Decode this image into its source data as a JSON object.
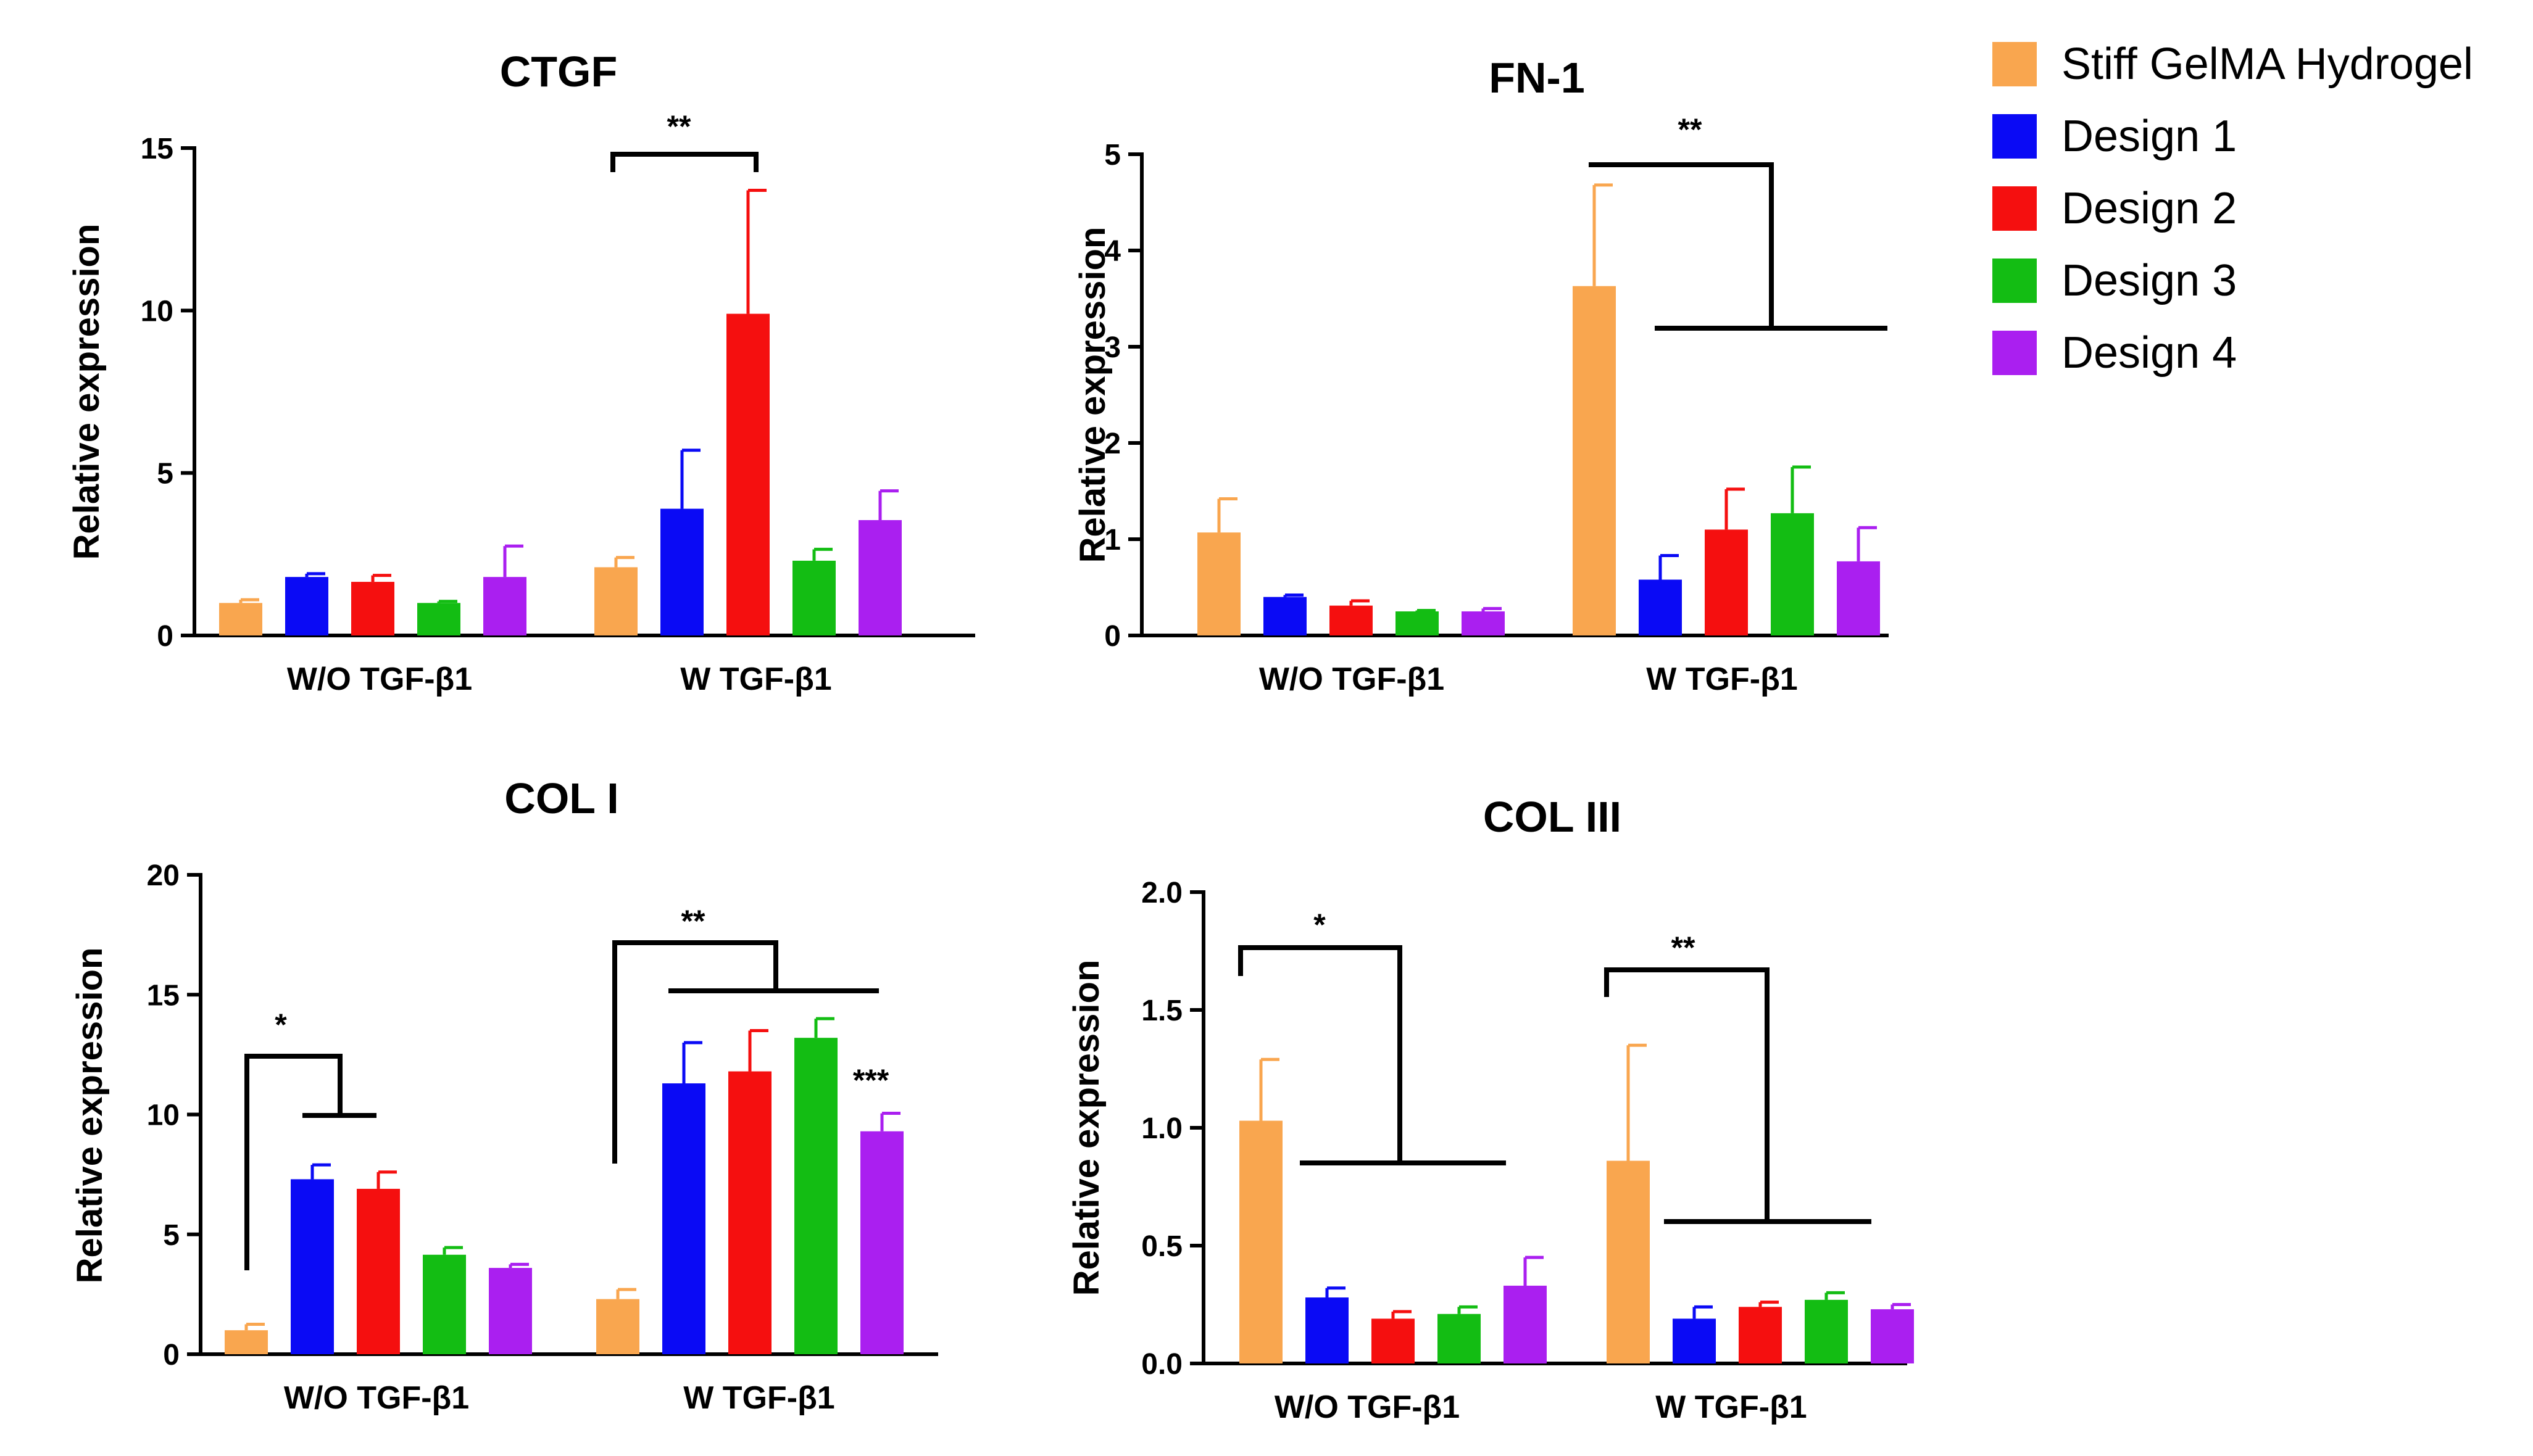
{
  "chart_data": [
    {
      "type": "bar",
      "title": "CTGF",
      "ylabel": "Relative expression",
      "ylim": [
        0,
        15
      ],
      "yticks": [
        "0",
        "5",
        "10",
        "15"
      ],
      "groups": [
        "W/O TGF-β1",
        "W TGF-β1"
      ],
      "series": [
        {
          "name": "Stiff GelMA Hydrogel",
          "values": [
            1.0,
            2.1
          ],
          "errors": [
            0.1,
            0.3
          ]
        },
        {
          "name": "Design 1",
          "values": [
            1.8,
            3.9
          ],
          "errors": [
            0.1,
            1.8
          ]
        },
        {
          "name": "Design 2",
          "values": [
            1.65,
            9.9
          ],
          "errors": [
            0.2,
            3.8
          ]
        },
        {
          "name": "Design 3",
          "values": [
            1.0,
            2.3
          ],
          "errors": [
            0.05,
            0.35
          ]
        },
        {
          "name": "Design 4",
          "values": [
            1.8,
            3.55
          ],
          "errors": [
            0.95,
            0.9
          ]
        }
      ],
      "annotations": [
        "**"
      ]
    },
    {
      "type": "bar",
      "title": "FN-1",
      "ylabel": "Relative expression",
      "ylim": [
        0,
        5
      ],
      "yticks": [
        "0",
        "1",
        "2",
        "3",
        "4",
        "5"
      ],
      "groups": [
        "W/O TGF-β1",
        "W TGF-β1"
      ],
      "series": [
        {
          "name": "Stiff GelMA Hydrogel",
          "values": [
            1.07,
            3.63
          ],
          "errors": [
            0.35,
            1.05
          ]
        },
        {
          "name": "Design 1",
          "values": [
            0.4,
            0.58
          ],
          "errors": [
            0.02,
            0.25
          ]
        },
        {
          "name": "Design 2",
          "values": [
            0.31,
            1.1
          ],
          "errors": [
            0.05,
            0.42
          ]
        },
        {
          "name": "Design 3",
          "values": [
            0.25,
            1.27
          ],
          "errors": [
            0.01,
            0.48
          ]
        },
        {
          "name": "Design 4",
          "values": [
            0.25,
            0.77
          ],
          "errors": [
            0.03,
            0.35
          ]
        }
      ],
      "annotations": [
        "**"
      ]
    },
    {
      "type": "bar",
      "title": "COL I",
      "ylabel": "Relative expression",
      "ylim": [
        0,
        20
      ],
      "yticks": [
        "0",
        "5",
        "10",
        "15",
        "20"
      ],
      "groups": [
        "W/O TGF-β1",
        "W TGF-β1"
      ],
      "series": [
        {
          "name": "Stiff GelMA Hydrogel",
          "values": [
            1.0,
            2.3
          ],
          "errors": [
            0.25,
            0.4
          ]
        },
        {
          "name": "Design 1",
          "values": [
            7.3,
            11.3
          ],
          "errors": [
            0.6,
            1.7
          ]
        },
        {
          "name": "Design 2",
          "values": [
            6.9,
            11.8
          ],
          "errors": [
            0.7,
            1.7
          ]
        },
        {
          "name": "Design 3",
          "values": [
            4.15,
            13.2
          ],
          "errors": [
            0.3,
            0.8
          ]
        },
        {
          "name": "Design 4",
          "values": [
            3.6,
            9.3
          ],
          "errors": [
            0.15,
            0.75
          ]
        }
      ],
      "annotations": [
        "*",
        "**",
        "***"
      ]
    },
    {
      "type": "bar",
      "title": "COL III",
      "ylabel": "Relative expression",
      "ylim": [
        0,
        2
      ],
      "yticks": [
        "0.0",
        "0.5",
        "1.0",
        "1.5",
        "2.0"
      ],
      "groups": [
        "W/O TGF-β1",
        "W TGF-β1"
      ],
      "series": [
        {
          "name": "Stiff GelMA Hydrogel",
          "values": [
            1.03,
            0.86
          ],
          "errors": [
            0.26,
            0.49
          ]
        },
        {
          "name": "Design 1",
          "values": [
            0.28,
            0.19
          ],
          "errors": [
            0.04,
            0.05
          ]
        },
        {
          "name": "Design 2",
          "values": [
            0.19,
            0.24
          ],
          "errors": [
            0.03,
            0.02
          ]
        },
        {
          "name": "Design 3",
          "values": [
            0.21,
            0.27
          ],
          "errors": [
            0.03,
            0.03
          ]
        },
        {
          "name": "Design 4",
          "values": [
            0.33,
            0.23
          ],
          "errors": [
            0.12,
            0.02
          ]
        }
      ],
      "annotations": [
        "*",
        "**"
      ]
    }
  ],
  "legend": [
    {
      "name": "Stiff GelMA Hydrogel",
      "color": "#f9a64f"
    },
    {
      "name": "Design 1",
      "color": "#0a0af5"
    },
    {
      "name": "Design 2",
      "color": "#f50f0f"
    },
    {
      "name": "Design 3",
      "color": "#13bd13"
    },
    {
      "name": "Design 4",
      "color": "#aa1ff0"
    }
  ]
}
